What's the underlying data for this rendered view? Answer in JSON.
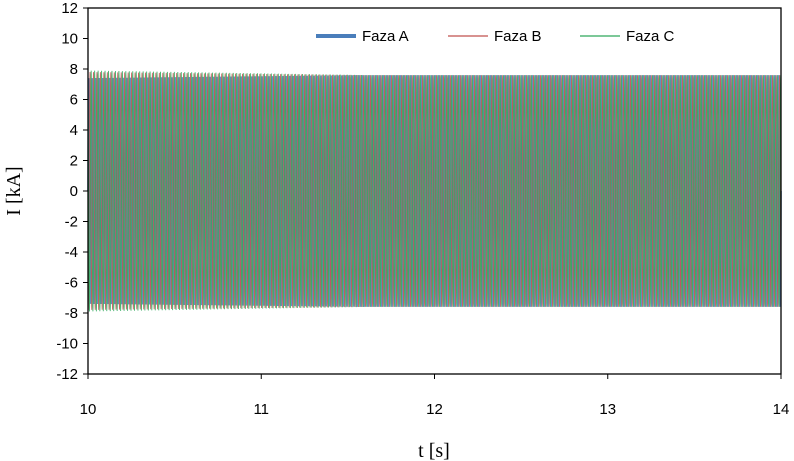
{
  "chart_data": {
    "type": "line",
    "title": "",
    "xlabel": "t [s]",
    "ylabel": "I [kA]",
    "xlim": [
      10,
      14
    ],
    "ylim": [
      -12,
      12
    ],
    "x_ticks": [
      "10",
      "11",
      "12",
      "13",
      "14"
    ],
    "y_ticks": [
      "12",
      "10",
      "8",
      "6",
      "4",
      "2",
      "0",
      "-2",
      "-4",
      "-6",
      "-8",
      "-10",
      "-12"
    ],
    "grid": false,
    "legend": "top-right",
    "signal_frequency_hz": 50,
    "series": [
      {
        "name": "Faza A",
        "color": "#4a7ebb",
        "amplitude_start": 7.4,
        "amplitude_end": 7.6,
        "phase_deg": 0
      },
      {
        "name": "Faza B",
        "color": "#c0504d",
        "amplitude_start": 7.8,
        "amplitude_end": 7.6,
        "phase_deg": -120
      },
      {
        "name": "Faza C",
        "color": "#2ea85a",
        "amplitude_start": 7.9,
        "amplitude_end": 7.6,
        "phase_deg": 120
      }
    ]
  }
}
